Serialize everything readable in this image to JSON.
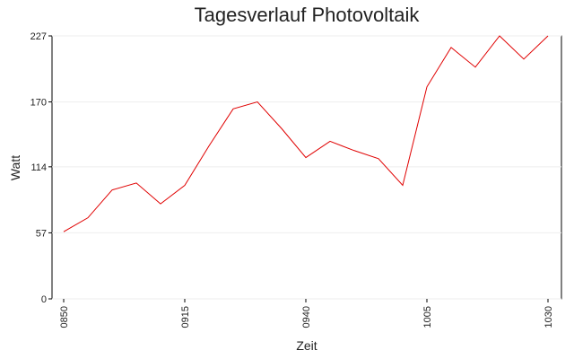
{
  "chart_data": {
    "type": "line",
    "title": "Tagesverlauf Photovoltaik",
    "x_label": "Zeit",
    "y_label": "Watt",
    "categories": [
      "0850",
      null,
      null,
      null,
      null,
      "0915",
      null,
      null,
      null,
      null,
      "0940",
      null,
      null,
      null,
      null,
      "1005",
      null,
      null,
      null,
      null,
      "1030"
    ],
    "series": [
      {
        "name": "Watt",
        "color": "#e00000",
        "values": [
          58,
          70,
          94,
          100,
          82,
          98,
          132,
          164,
          170,
          147,
          122,
          136,
          128,
          121,
          98,
          183,
          217,
          200,
          227,
          207,
          227
        ]
      }
    ],
    "ylim": [
      0,
      227
    ],
    "yticks": [
      0,
      57,
      114,
      170,
      227
    ],
    "grid": true
  }
}
